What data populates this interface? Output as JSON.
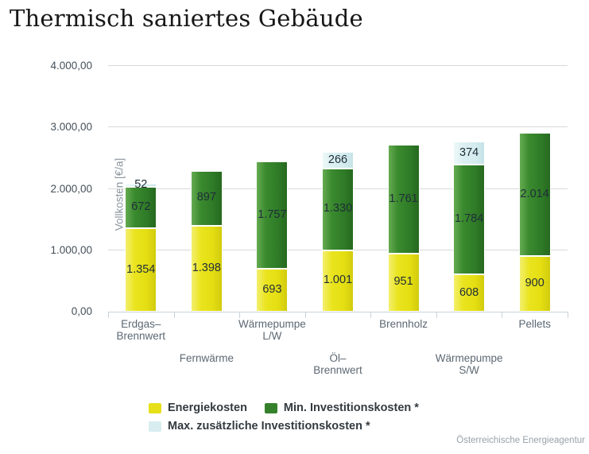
{
  "title": "Thermisch saniertes Gebäude",
  "credit": "Österreichische Energieagentur",
  "chart_data": {
    "type": "bar",
    "stacked": true,
    "title": "Thermisch saniertes Gebäude",
    "xlabel": "",
    "ylabel": "Vollkosten [€/a]",
    "ylim": [
      0,
      4000
    ],
    "ytick_step": 1000,
    "yticks": [
      0,
      1000,
      2000,
      3000,
      4000
    ],
    "ytick_labels": [
      "0,00",
      "1.000,00",
      "2.000,00",
      "3.000,00",
      "4.000,00"
    ],
    "grid": true,
    "legend_position": "bottom",
    "categories": [
      "Erdgas-Brennwert",
      "Fernwärme",
      "Wärmepumpe L/W",
      "Öl-Brennwert",
      "Brennholz",
      "Wärmepumpe S/W",
      "Pellets"
    ],
    "category_label_lines": [
      [
        "Erdgas–",
        "Brennwert"
      ],
      [
        "Fernwärme"
      ],
      [
        "Wärmepumpe",
        "L/W"
      ],
      [
        "Öl–",
        "Brennwert"
      ],
      [
        "Brennholz"
      ],
      [
        "Wärmepumpe",
        "S/W"
      ],
      [
        "Pellets"
      ]
    ],
    "category_label_row": [
      0,
      1,
      0,
      1,
      0,
      1,
      0
    ],
    "series": [
      {
        "name": "Energiekosten",
        "color": "#e6e01a",
        "values": [
          1354,
          1398,
          693,
          1001,
          951,
          608,
          900
        ],
        "labels": [
          "1.354",
          "1.398",
          "693",
          "1.001",
          "951",
          "608",
          "900"
        ]
      },
      {
        "name": "Min. Investitionskosten *",
        "color": "#35812b",
        "values": [
          672,
          897,
          1757,
          1330,
          1761,
          1784,
          2014
        ],
        "labels": [
          "672",
          "897",
          "1.757",
          "1.330",
          "1.761",
          "1.784",
          "2.014"
        ]
      },
      {
        "name": "Max. zusätzliche Investitionskosten *",
        "color": "#d7edf0",
        "values": [
          52,
          0,
          0,
          266,
          0,
          374,
          0
        ],
        "labels": [
          "52",
          "",
          "",
          "266",
          "",
          "374",
          ""
        ]
      }
    ]
  }
}
